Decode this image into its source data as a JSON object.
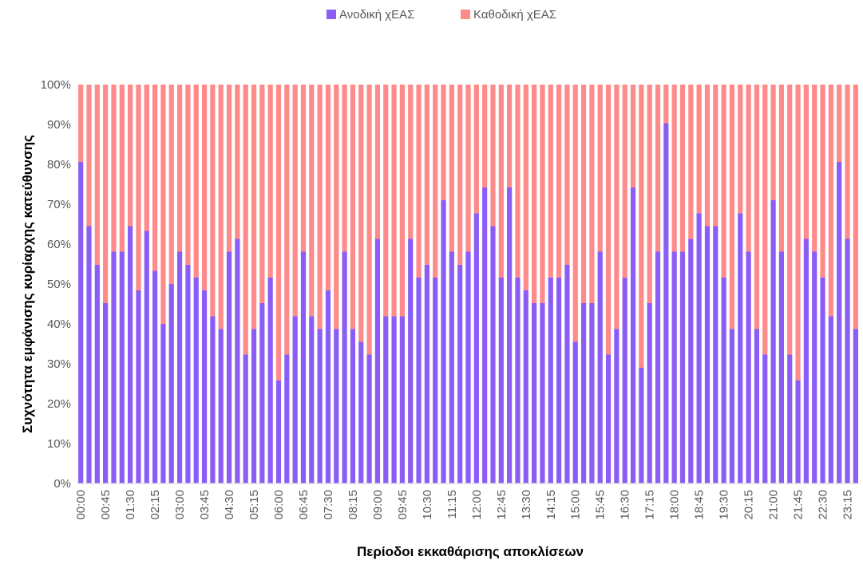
{
  "chart_data": {
    "type": "bar",
    "stacked": "percent",
    "title": "",
    "xlabel": "Περίοδοι εκκαθάρισης αποκλίσεων",
    "ylabel": "Συχνότητα  εμφάνισης κυρίαρχης κατεύθυνσης",
    "ylim": [
      0,
      100
    ],
    "yticks": [
      "0%",
      "10%",
      "20%",
      "30%",
      "40%",
      "50%",
      "60%",
      "70%",
      "80%",
      "90%",
      "100%"
    ],
    "grid": false,
    "legend_position": "top",
    "categories": [
      "00:00",
      "00:15",
      "00:30",
      "00:45",
      "01:00",
      "01:15",
      "01:30",
      "01:45",
      "02:00",
      "02:15",
      "02:30",
      "02:45",
      "03:00",
      "03:15",
      "03:30",
      "03:45",
      "04:00",
      "04:15",
      "04:30",
      "04:45",
      "05:00",
      "05:15",
      "05:30",
      "05:45",
      "06:00",
      "06:15",
      "06:30",
      "06:45",
      "07:00",
      "07:15",
      "07:30",
      "07:45",
      "08:00",
      "08:15",
      "08:30",
      "08:45",
      "09:00",
      "09:15",
      "09:30",
      "09:45",
      "10:00",
      "10:15",
      "10:30",
      "10:45",
      "11:00",
      "11:15",
      "11:30",
      "11:45",
      "12:00",
      "12:15",
      "12:30",
      "12:45",
      "13:00",
      "13:15",
      "13:30",
      "13:45",
      "14:00",
      "14:15",
      "14:30",
      "14:45",
      "15:00",
      "15:15",
      "15:30",
      "15:45",
      "16:00",
      "16:15",
      "16:30",
      "16:45",
      "17:00",
      "17:15",
      "17:30",
      "17:45",
      "18:00",
      "18:15",
      "18:30",
      "18:45",
      "19:00",
      "19:15",
      "19:30",
      "19:45",
      "20:00",
      "20:15",
      "20:30",
      "20:45",
      "21:00",
      "21:15",
      "21:30",
      "21:45",
      "22:00",
      "22:15",
      "22:30",
      "22:45",
      "23:00",
      "23:15",
      "23:30"
    ],
    "x_tick_labels": [
      "00:00",
      "00:45",
      "01:30",
      "02:15",
      "03:00",
      "03:45",
      "04:30",
      "05:15",
      "06:00",
      "06:45",
      "07:30",
      "08:15",
      "09:00",
      "09:45",
      "10:30",
      "11:15",
      "12:00",
      "12:45",
      "13:30",
      "14:15",
      "15:00",
      "15:45",
      "16:30",
      "17:15",
      "18:00",
      "18:45",
      "19:30",
      "20:15",
      "21:00",
      "21:45",
      "22:30",
      "23:15"
    ],
    "series": [
      {
        "name": "Ανοδική χΕΑΣ",
        "color": "#8b5cf6",
        "values": [
          80.6,
          64.5,
          54.8,
          45.2,
          58.1,
          58.1,
          64.5,
          48.4,
          63.3,
          53.3,
          40.0,
          50.0,
          58.1,
          54.8,
          51.6,
          48.4,
          41.9,
          38.7,
          58.1,
          61.3,
          32.3,
          38.7,
          45.2,
          51.6,
          25.8,
          32.3,
          41.9,
          58.1,
          41.9,
          38.7,
          48.4,
          38.7,
          58.1,
          38.7,
          35.5,
          32.3,
          61.3,
          41.9,
          41.9,
          41.9,
          61.3,
          51.6,
          54.8,
          51.6,
          71.0,
          58.1,
          54.8,
          58.1,
          67.7,
          74.2,
          64.5,
          51.6,
          74.2,
          51.6,
          48.4,
          45.2,
          45.2,
          51.6,
          51.6,
          54.8,
          35.5,
          45.2,
          45.2,
          58.1,
          32.3,
          38.7,
          51.6,
          74.2,
          29.0,
          45.2,
          58.1,
          90.3,
          58.1,
          58.1,
          61.3,
          67.7,
          64.5,
          64.5,
          51.6,
          38.7,
          67.7,
          58.1,
          38.7,
          32.3,
          71.0,
          58.1,
          32.3,
          25.8,
          61.3,
          58.1,
          51.6,
          41.9,
          80.6,
          61.3,
          38.7
        ]
      },
      {
        "name": "Καθοδική χΕΑΣ",
        "color": "#ff8a8a",
        "values": [
          19.4,
          35.5,
          45.2,
          54.8,
          41.9,
          41.9,
          35.5,
          51.6,
          36.7,
          46.7,
          60.0,
          50.0,
          41.9,
          45.2,
          48.4,
          51.6,
          58.1,
          61.3,
          41.9,
          38.7,
          67.7,
          61.3,
          54.8,
          48.4,
          74.2,
          67.7,
          58.1,
          41.9,
          58.1,
          61.3,
          51.6,
          61.3,
          41.9,
          61.3,
          64.5,
          67.7,
          38.7,
          58.1,
          58.1,
          58.1,
          38.7,
          48.4,
          45.2,
          48.4,
          29.0,
          41.9,
          45.2,
          41.9,
          32.3,
          25.8,
          35.5,
          48.4,
          25.8,
          48.4,
          51.6,
          54.8,
          54.8,
          48.4,
          48.4,
          45.2,
          64.5,
          54.8,
          54.8,
          41.9,
          67.7,
          61.3,
          48.4,
          25.8,
          71.0,
          54.8,
          41.9,
          9.7,
          41.9,
          41.9,
          38.7,
          32.3,
          35.5,
          35.5,
          48.4,
          61.3,
          32.3,
          41.9,
          61.3,
          67.7,
          29.0,
          41.9,
          67.7,
          74.2,
          38.7,
          41.9,
          48.4,
          58.1,
          19.4,
          38.7,
          61.3
        ]
      }
    ]
  }
}
